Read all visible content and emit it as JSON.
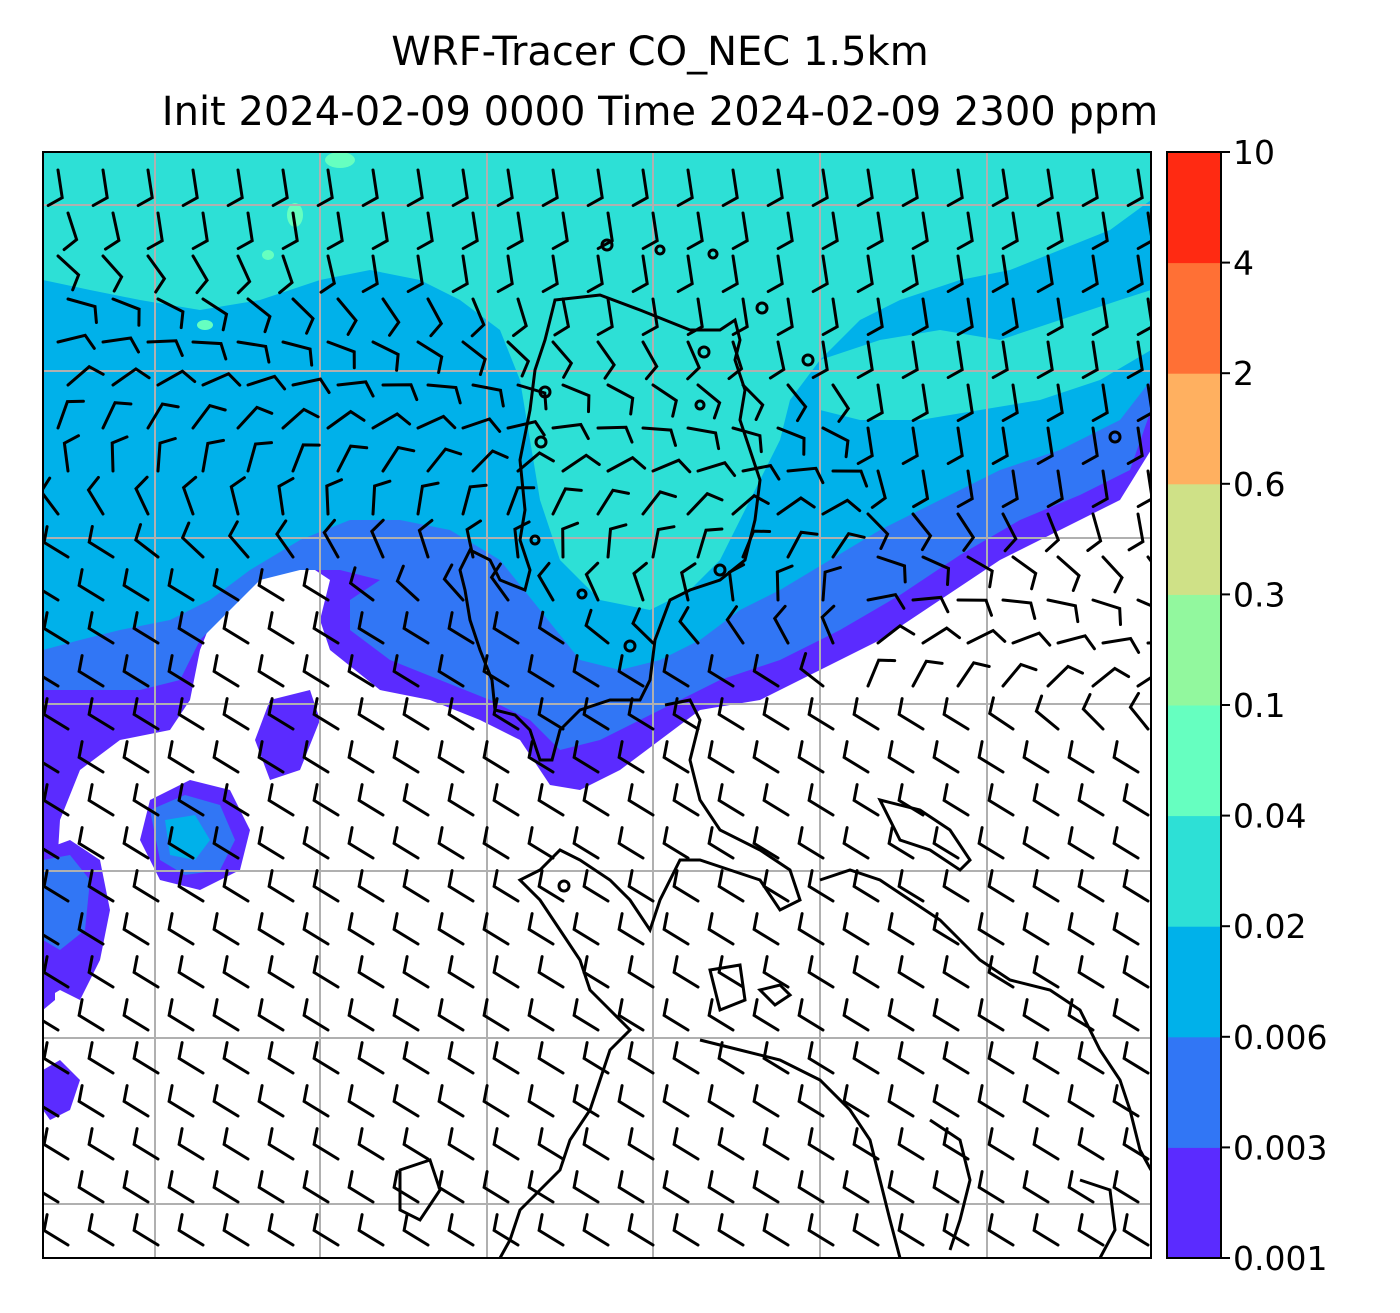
{
  "title_line1": "WRF-Tracer CO_NEC 1.5km",
  "title_line2": "Init 2024-02-09 0000 Time 2024-02-09 2300 ppm",
  "colorbar": {
    "levels": [
      "0.001",
      "0.003",
      "0.006",
      "0.02",
      "0.04",
      "0.1",
      "0.3",
      "0.6",
      "2",
      "4",
      "10"
    ],
    "colors": [
      "#5b2bff",
      "#3176f5",
      "#00b1ea",
      "#2de0d6",
      "#66ffc0",
      "#92f89e",
      "#cfe187",
      "#ffb060",
      "#ff7035",
      "#ff2a12"
    ]
  },
  "map": {
    "gridlines": true,
    "gridline_color": "#b0b0b0",
    "wind_barbs": "southwesterly flow over the south, northerly flow over the north",
    "coastline_color": "#000000"
  }
}
